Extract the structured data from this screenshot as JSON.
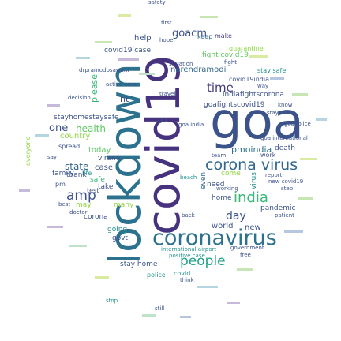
{
  "wordcloud": {
    "big": {
      "covid19": "covid19",
      "lockdown": "lockdown",
      "goa": "goa",
      "coronavirus": "coronavirus",
      "corona_virus": "corona virus",
      "people": "people",
      "india": "india",
      "amp": "amp",
      "time": "time",
      "goacm": "goacm",
      "health": "health",
      "one": "one",
      "state": "state",
      "day": "day",
      "pmoindia": "pmoindia",
      "narendramodi": "narendramodi",
      "today": "today",
      "country": "country",
      "please": "please"
    },
    "medium": {
      "covid19_case": "covid19 case",
      "help": "help",
      "keep": "keep",
      "make": "make",
      "fight_covid19": "fight covid19",
      "quarantine": "quarantine",
      "stay_safe": "stay safe",
      "covid19india": "covid19india",
      "indiafightscorona": "indiafightscorona",
      "goafightscovid19": "goafightscovid19",
      "nt": "nt",
      "stayhomestaysafe": "stayhomestaysafe",
      "thank": "thank",
      "family": "family",
      "life": "life",
      "may": "may",
      "safe": "safe",
      "case": "case",
      "virane": "virane",
      "go": "go",
      "death": "death",
      "work": "work",
      "new": "new",
      "world": "world",
      "need": "need",
      "home": "home",
      "pandemic": "pandemic",
      "even": "even",
      "govt": "govt",
      "going": "going",
      "many": "many",
      "take": "take",
      "test": "test",
      "corona": "corona",
      "stay_home": "stay home",
      "police": "police",
      "covid": "covid",
      "think": "think",
      "positive_case": "positive case",
      "international_airport": "international airport",
      "government": "government",
      "free": "free",
      "virus": "virus",
      "come": "come",
      "goa_international": "goa international",
      "new_covid19": "new covid19",
      "step": "step",
      "patient": "patient",
      "know": "know",
      "report": "report",
      "goa_india": "goa india",
      "travel": "travel",
      "drpramodpsawant": "drpramodpsawant",
      "situation": "situation",
      "everyone": "everyone",
      "spread": "spread",
      "goapolice": "goapolice",
      "stop": "stop",
      "safety": "safety",
      "pm": "pm",
      "best": "best",
      "doctor": "doctor",
      "back": "back",
      "working": "working",
      "stay": "stay",
      "team": "team",
      "beach": "beach",
      "still": "still",
      "way": "way",
      "fight": "fight",
      "first": "first",
      "hope": "hope",
      "active_case": "active case",
      "decision": "decision",
      "say": "say"
    }
  },
  "colors": {
    "dark_purple": "#440154",
    "indigo": "#3b528b",
    "blue": "#31688e",
    "teal": "#21918c",
    "green": "#35b779",
    "lime": "#90d743",
    "yellow": "#fde725"
  }
}
